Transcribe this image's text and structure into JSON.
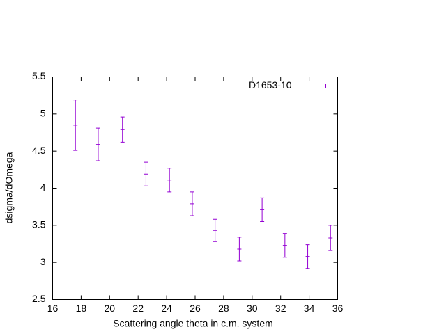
{
  "chart_data": {
    "type": "errorbar",
    "xlabel": "Scattering angle theta in c.m. system",
    "ylabel": "dsigma/dOmega",
    "series": [
      {
        "name": "D1653-10",
        "color": "#9400d3",
        "x": [
          17.6,
          19.2,
          20.9,
          22.55,
          24.2,
          25.8,
          27.4,
          29.1,
          30.7,
          32.3,
          33.9,
          35.5
        ],
        "values": [
          4.85,
          4.59,
          4.79,
          4.19,
          4.11,
          3.79,
          3.43,
          3.18,
          3.71,
          3.23,
          3.08,
          3.33
        ],
        "errors": [
          0.34,
          0.22,
          0.17,
          0.16,
          0.16,
          0.16,
          0.15,
          0.16,
          0.16,
          0.16,
          0.16,
          0.17
        ]
      }
    ],
    "xlim": [
      16,
      36
    ],
    "ylim": [
      2.5,
      5.5
    ],
    "xticks": [
      16,
      18,
      20,
      22,
      24,
      26,
      28,
      30,
      32,
      34,
      36
    ],
    "yticks": [
      2.5,
      3,
      3.5,
      4,
      4.5,
      5,
      5.5
    ],
    "legend": "top-right"
  }
}
